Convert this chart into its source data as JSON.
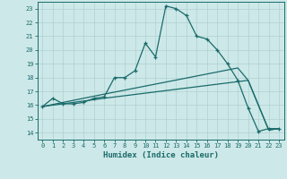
{
  "title": "",
  "xlabel": "Humidex (Indice chaleur)",
  "background_color": "#cde8e8",
  "grid_color": "#b0d0d0",
  "line_color": "#1a6b6b",
  "xlim": [
    -0.5,
    23.5
  ],
  "ylim": [
    13.5,
    23.5
  ],
  "xticks": [
    0,
    1,
    2,
    3,
    4,
    5,
    6,
    7,
    8,
    9,
    10,
    11,
    12,
    13,
    14,
    15,
    16,
    17,
    18,
    19,
    20,
    21,
    22,
    23
  ],
  "yticks": [
    14,
    15,
    16,
    17,
    18,
    19,
    20,
    21,
    22,
    23
  ],
  "line1_x": [
    0,
    1,
    2,
    3,
    4,
    5,
    6,
    7,
    8,
    9,
    10,
    11,
    12,
    13,
    14,
    15,
    16,
    17,
    18,
    19,
    20,
    21,
    22,
    23
  ],
  "line1_y": [
    15.9,
    16.5,
    16.1,
    16.1,
    16.2,
    16.5,
    16.6,
    18.0,
    18.0,
    18.5,
    20.5,
    19.5,
    23.2,
    23.0,
    22.5,
    21.0,
    20.8,
    20.0,
    19.0,
    17.8,
    15.8,
    14.1,
    14.3,
    14.3
  ],
  "line2_x": [
    0,
    6,
    20,
    21,
    22,
    23
  ],
  "line2_y": [
    15.9,
    16.5,
    17.8,
    16.0,
    14.2,
    14.3
  ],
  "line3_x": [
    0,
    6,
    19,
    20,
    21,
    22,
    23
  ],
  "line3_y": [
    15.9,
    16.8,
    18.7,
    17.8,
    16.0,
    14.2,
    14.3
  ]
}
